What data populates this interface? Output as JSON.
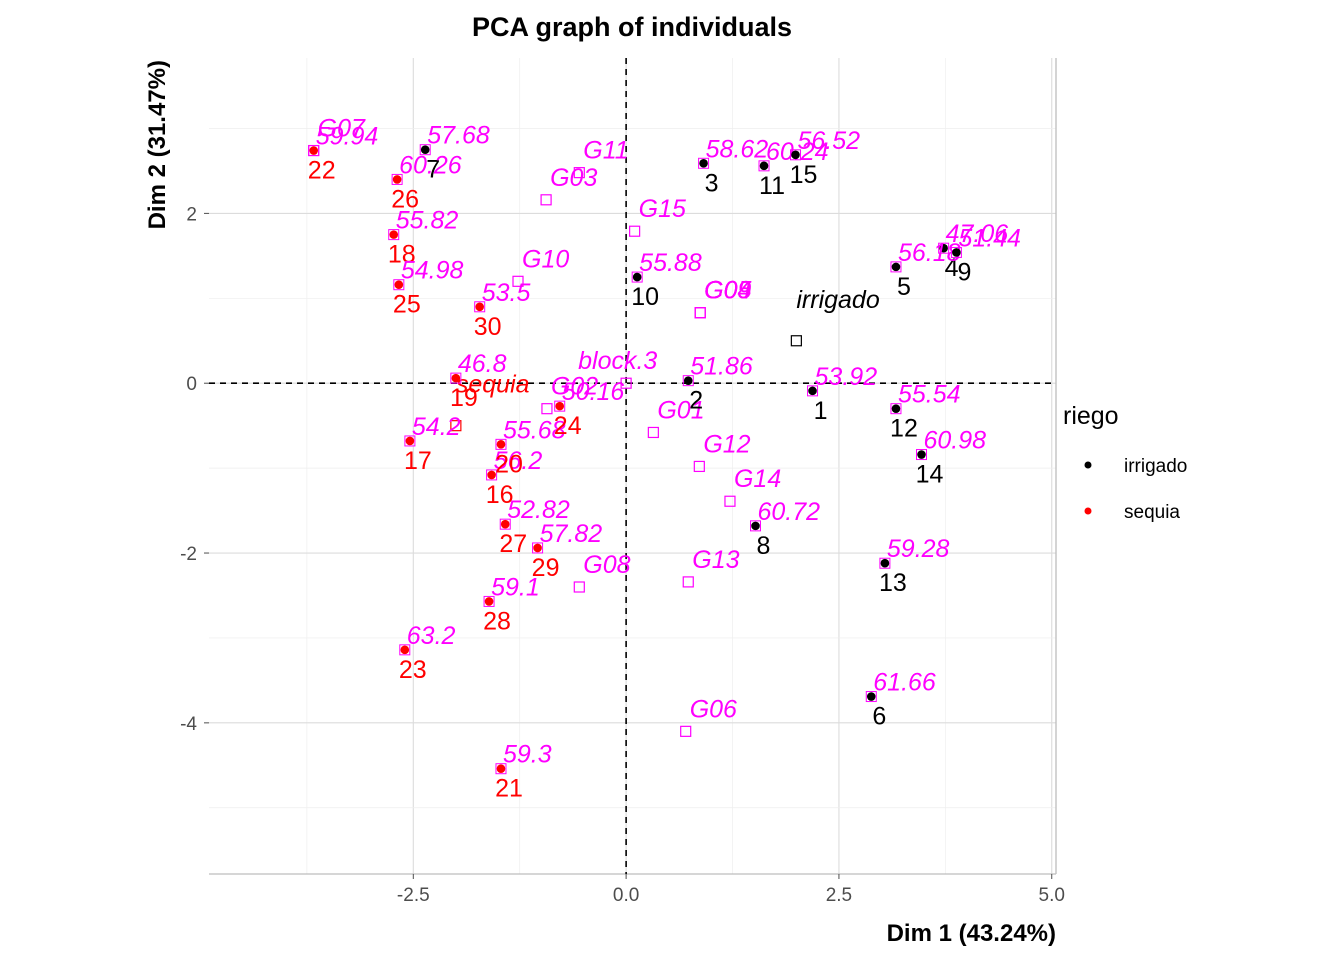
{
  "chart_data": {
    "type": "scatter",
    "title": "PCA graph of individuals",
    "xlabel": "Dim 1 (43.24%)",
    "ylabel": "Dim 2 (31.47%)",
    "xlim": [
      -4.9,
      5.05
    ],
    "ylim": [
      -5.78,
      3.83
    ],
    "xticks": [
      -2.5,
      0.0,
      2.5,
      5.0
    ],
    "xtick_labels": [
      "-2.5",
      "0.0",
      "2.5",
      "5.0"
    ],
    "yticks": [
      -4,
      -2,
      0,
      2
    ],
    "ytick_labels": [
      "-4",
      "-2",
      "0",
      "2"
    ],
    "grid": true,
    "reference_lines": "dashed at x=0 and y=0",
    "colors": {
      "irrigado": "#000000",
      "sequia": "#ff0000",
      "supplementary": "#ff00ff"
    },
    "legend": {
      "title": "riego",
      "position": "right",
      "entries": [
        {
          "label": "irrigado",
          "color": "#000000"
        },
        {
          "label": "sequia",
          "color": "#ff0000"
        }
      ]
    },
    "individuals": [
      {
        "label": "1",
        "x": 2.19,
        "y": -0.09,
        "group": "irrigado",
        "value_label": "53.92"
      },
      {
        "label": "2",
        "x": 0.73,
        "y": 0.03,
        "group": "irrigado",
        "value_label": "51.86"
      },
      {
        "label": "3",
        "x": 0.91,
        "y": 2.59,
        "group": "irrigado",
        "value_label": "58.62"
      },
      {
        "label": "4",
        "x": 3.73,
        "y": 1.59,
        "group": "irrigado",
        "value_label": "47.06"
      },
      {
        "label": "5",
        "x": 3.17,
        "y": 1.37,
        "group": "irrigado",
        "value_label": "56.18"
      },
      {
        "label": "6",
        "x": 2.88,
        "y": -3.69,
        "group": "irrigado",
        "value_label": "61.66"
      },
      {
        "label": "7",
        "x": -2.36,
        "y": 2.75,
        "group": "irrigado",
        "value_label": "57.68"
      },
      {
        "label": "8",
        "x": 1.52,
        "y": -1.68,
        "group": "irrigado",
        "value_label": "60.72"
      },
      {
        "label": "9",
        "x": 3.88,
        "y": 1.54,
        "group": "irrigado",
        "value_label": "51.44"
      },
      {
        "label": "10",
        "x": 0.13,
        "y": 1.25,
        "group": "irrigado",
        "value_label": "55.88"
      },
      {
        "label": "11",
        "x": 1.62,
        "y": 2.56,
        "group": "irrigado",
        "value_label": "60.24"
      },
      {
        "label": "12",
        "x": 3.17,
        "y": -0.3,
        "group": "irrigado",
        "value_label": "55.54"
      },
      {
        "label": "13",
        "x": 3.04,
        "y": -2.12,
        "group": "irrigado",
        "value_label": "59.28"
      },
      {
        "label": "14",
        "x": 3.47,
        "y": -0.84,
        "group": "irrigado",
        "value_label": "60.98"
      },
      {
        "label": "15",
        "x": 1.99,
        "y": 2.69,
        "group": "irrigado",
        "value_label": "56.52"
      },
      {
        "label": "16",
        "x": -1.58,
        "y": -1.08,
        "group": "sequia",
        "value_label": "56.2"
      },
      {
        "label": "17",
        "x": -2.54,
        "y": -0.68,
        "group": "sequia",
        "value_label": "54.2"
      },
      {
        "label": "18",
        "x": -2.73,
        "y": 1.75,
        "group": "sequia",
        "value_label": "55.82"
      },
      {
        "label": "19",
        "x": -2.0,
        "y": 0.06,
        "group": "sequia",
        "value_label": "46.8"
      },
      {
        "label": "20",
        "x": -1.47,
        "y": -0.72,
        "group": "sequia",
        "value_label": "55.68"
      },
      {
        "label": "21",
        "x": -1.47,
        "y": -4.54,
        "group": "sequia",
        "value_label": "59.3"
      },
      {
        "label": "22",
        "x": -3.67,
        "y": 2.74,
        "group": "sequia",
        "value_label": "59.94"
      },
      {
        "label": "23",
        "x": -2.6,
        "y": -3.14,
        "group": "sequia",
        "value_label": "63.2"
      },
      {
        "label": "24",
        "x": -0.78,
        "y": -0.27,
        "group": "sequia",
        "value_label": "50.16"
      },
      {
        "label": "25",
        "x": -2.67,
        "y": 1.16,
        "group": "sequia",
        "value_label": "54.98"
      },
      {
        "label": "26",
        "x": -2.69,
        "y": 2.4,
        "group": "sequia",
        "value_label": "60.26"
      },
      {
        "label": "27",
        "x": -1.42,
        "y": -1.66,
        "group": "sequia",
        "value_label": "52.82"
      },
      {
        "label": "28",
        "x": -1.61,
        "y": -2.57,
        "group": "sequia",
        "value_label": "59.1"
      },
      {
        "label": "29",
        "x": -1.04,
        "y": -1.94,
        "group": "sequia",
        "value_label": "57.82"
      },
      {
        "label": "30",
        "x": -1.72,
        "y": 0.9,
        "group": "sequia",
        "value_label": "53.5"
      }
    ],
    "supplementary_individuals": [
      {
        "label": "G01",
        "x": 0.32,
        "y": -0.58
      },
      {
        "label": "G02",
        "x": -0.93,
        "y": -0.3
      },
      {
        "label": "G03",
        "x": -0.94,
        "y": 2.16
      },
      {
        "label": "G04",
        "x": 0.87,
        "y": 0.83
      },
      {
        "label": "G05",
        "x": 0.87,
        "y": 0.83
      },
      {
        "label": "G06",
        "x": 0.7,
        "y": -4.1
      },
      {
        "label": "G07",
        "x": -3.67,
        "y": 2.74
      },
      {
        "label": "G08",
        "x": -0.55,
        "y": -2.4
      },
      {
        "label": "G09",
        "x": 0.87,
        "y": 0.83
      },
      {
        "label": "G10",
        "x": -1.27,
        "y": 1.2
      },
      {
        "label": "G11",
        "x": -0.55,
        "y": 2.48
      },
      {
        "label": "G12",
        "x": 0.86,
        "y": -0.98
      },
      {
        "label": "G13",
        "x": 0.73,
        "y": -2.34
      },
      {
        "label": "G14",
        "x": 1.22,
        "y": -1.39
      },
      {
        "label": "G15",
        "x": 0.1,
        "y": 1.79
      },
      {
        "label": "block.3",
        "x": 0.0,
        "y": 0.0
      }
    ],
    "supplementary_categories": [
      {
        "label": "irrigado",
        "x": 2.0,
        "y": 0.5,
        "color": "#000000"
      },
      {
        "label": "sequia",
        "x": -2.0,
        "y": -0.5,
        "color": "#ff0000"
      }
    ]
  }
}
